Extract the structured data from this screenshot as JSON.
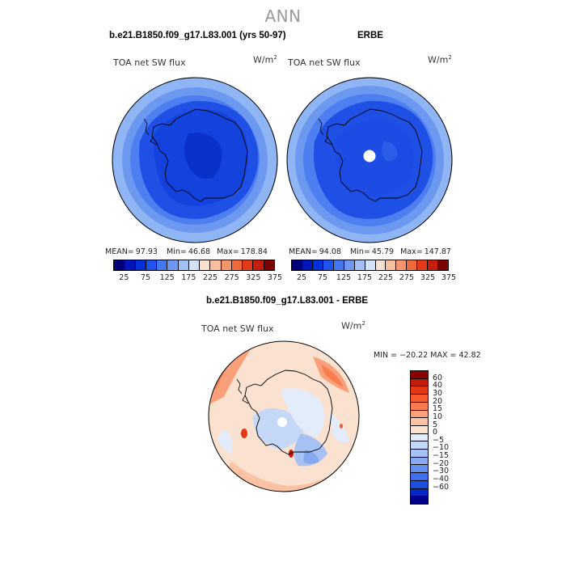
{
  "page": {
    "main_title": "ANN"
  },
  "panels": [
    {
      "title": "b.e21.B1850.f09_g17.L83.001 (yrs 50-97)",
      "variable": "TOA net SW flux",
      "units": "W/m",
      "units_exp": "2",
      "stats": {
        "mean_label": "MEAN=",
        "mean": "97.93",
        "min_label": "Min=",
        "min": "46.68",
        "max_label": "Max=",
        "max": "178.84"
      }
    },
    {
      "title": "ERBE",
      "variable": "TOA net SW flux",
      "units": "W/m",
      "units_exp": "2",
      "stats": {
        "mean_label": "MEAN=",
        "mean": "94.08",
        "min_label": "Min=",
        "min": "45.79",
        "max_label": "Max=",
        "max": "147.87"
      }
    },
    {
      "title": "b.e21.B1850.f09_g17.L83.001 - ERBE",
      "variable": "TOA net SW flux",
      "units": "W/m",
      "units_exp": "2",
      "stats_line": "MIN = −20.22 MAX =  42.82"
    }
  ],
  "colorbar_top": {
    "colors": [
      "#00007a",
      "#0015b8",
      "#0030d8",
      "#1f54f0",
      "#4478f0",
      "#6c98f0",
      "#a2c0f5",
      "#d2e2fb",
      "#fbe1cf",
      "#f7bea0",
      "#f5966e",
      "#f06a3c",
      "#e63b1a",
      "#c41e0c",
      "#7d0000"
    ],
    "ticks": [
      "25",
      "75",
      "125",
      "175",
      "225",
      "275",
      "325",
      "375"
    ]
  },
  "colorbar_diff": {
    "colors": [
      "#8b0000",
      "#c41a0a",
      "#e23814",
      "#f45a2b",
      "#f77c50",
      "#f9a07a",
      "#fbc2a4",
      "#fde3d2",
      "#e2ecfb",
      "#c5d8f8",
      "#a6c2f5",
      "#86a9f0",
      "#648ff0",
      "#3d6ff0",
      "#1b4de2",
      "#0528c4",
      "#00008a"
    ],
    "ticks": [
      "60",
      "40",
      "30",
      "20",
      "15",
      "10",
      "5",
      "0",
      "−5",
      "−10",
      "−15",
      "−20",
      "−30",
      "−40",
      "−60"
    ]
  }
}
